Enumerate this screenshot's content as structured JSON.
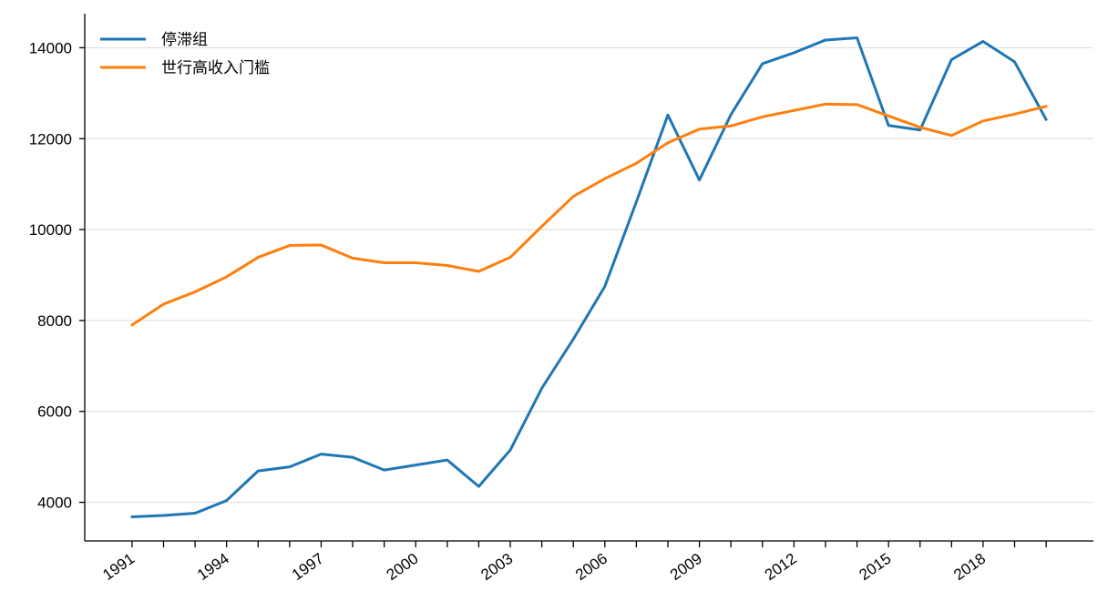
{
  "chart_data": {
    "type": "line",
    "title": "",
    "xlabel": "",
    "ylabel": "",
    "x": [
      1991,
      1992,
      1993,
      1994,
      1995,
      1996,
      1997,
      1998,
      1999,
      2000,
      2001,
      2002,
      2003,
      2004,
      2005,
      2006,
      2007,
      2008,
      2009,
      2010,
      2011,
      2012,
      2013,
      2014,
      2015,
      2016,
      2017,
      2018,
      2019,
      2020
    ],
    "x_tick_labels": [
      "1991",
      "1994",
      "1997",
      "2000",
      "2003",
      "2006",
      "2009",
      "2012",
      "2015",
      "2018"
    ],
    "y_tick_labels": [
      "4000",
      "6000",
      "8000",
      "10000",
      "12000",
      "14000"
    ],
    "y_ticks": [
      4000,
      6000,
      8000,
      10000,
      12000,
      14000
    ],
    "ylim": [
      3150,
      14750
    ],
    "xlim": [
      1989.5,
      2021.5
    ],
    "grid": "horizontal",
    "legend_position": "top-left",
    "series": [
      {
        "name": "停滞组",
        "color": "#1f77b4",
        "values": [
          3680,
          3710,
          3760,
          4040,
          4690,
          4780,
          5060,
          4990,
          4710,
          4820,
          4930,
          4350,
          5150,
          6510,
          7590,
          8750,
          10610,
          12520,
          11090,
          12530,
          13650,
          13890,
          14170,
          14220,
          12290,
          12190,
          13740,
          14140,
          13690,
          12420
        ]
      },
      {
        "name": "世行高收入门槛",
        "color": "#ff7f0e",
        "values": [
          7900,
          8360,
          8630,
          8960,
          9390,
          9650,
          9660,
          9370,
          9270,
          9270,
          9210,
          9080,
          9390,
          10070,
          10730,
          11120,
          11460,
          11910,
          12210,
          12280,
          12480,
          12620,
          12760,
          12750,
          12500,
          12250,
          12070,
          12390,
          12540,
          12710
        ]
      }
    ]
  }
}
